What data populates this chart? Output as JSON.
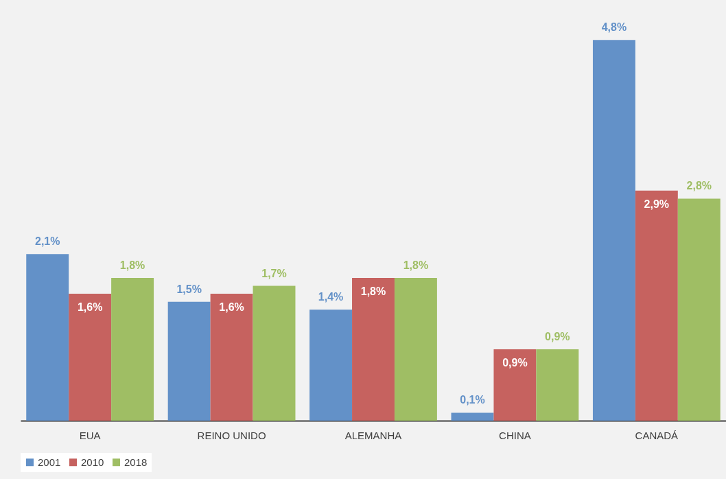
{
  "chart_data": {
    "type": "bar",
    "categories": [
      "EUA",
      "REINO UNIDO",
      "ALEMANHA",
      "CHINA",
      "CANADÁ"
    ],
    "series": [
      {
        "name": "2001",
        "color": "#6391c8",
        "values": [
          2.1,
          1.5,
          1.4,
          0.1,
          4.8
        ],
        "value_labels": [
          "2,1%",
          "1,5%",
          "1,4%",
          "0,1%",
          "4,8%"
        ]
      },
      {
        "name": "2010",
        "color": "#c6625f",
        "values": [
          1.6,
          1.6,
          1.8,
          0.9,
          2.9
        ],
        "value_labels": [
          "1,6%",
          "1,6%",
          "1,8%",
          "0,9%",
          "2,9%"
        ]
      },
      {
        "name": "2018",
        "color": "#9fbe64",
        "values": [
          1.8,
          1.7,
          1.8,
          0.9,
          2.8
        ],
        "value_labels": [
          "1,8%",
          "1,7%",
          "1,8%",
          "0,9%",
          "2,8%"
        ]
      }
    ],
    "legend": "bottom",
    "grid": false
  }
}
